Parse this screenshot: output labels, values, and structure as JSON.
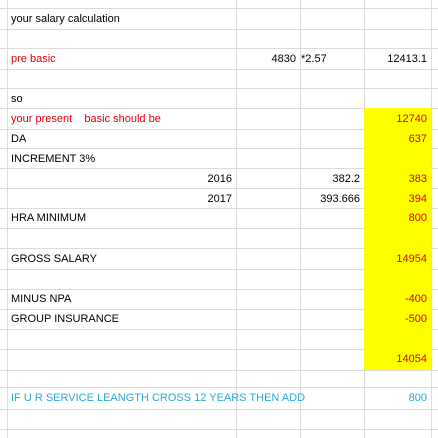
{
  "sheet": {
    "title": "your salary calculation",
    "pre_basic": {
      "label": "pre basic",
      "value": "4830",
      "factor": "*2.57",
      "result": "12413.1"
    },
    "so": "so",
    "present_basic": {
      "label": "your present    basic should be",
      "value": "12740"
    },
    "da": {
      "label": "DA",
      "value": "637"
    },
    "increment": {
      "label": "INCREMENT 3%"
    },
    "inc_2016": {
      "year": "2016",
      "calc": "382.2",
      "value": "383"
    },
    "inc_2017": {
      "year": "2017",
      "calc": "393.666",
      "value": "394"
    },
    "hra": {
      "label": "HRA MINIMUM",
      "value": "800"
    },
    "gross": {
      "label": "GROSS SALARY",
      "value": "14954"
    },
    "npa": {
      "label": "MINUS NPA",
      "value": "-400"
    },
    "insurance": {
      "label": "GROUP INSURANCE",
      "value": "-500"
    },
    "net": {
      "value": "14054"
    },
    "service": {
      "label": "IF U R SERVICE LEANGTH CROSS 12 YEARS THEN ADD",
      "value": "800"
    }
  },
  "colors": {
    "highlight": "#ffff00",
    "red_text": "#e0000e",
    "blue_text": "#2aa8d8",
    "gridline": "#dcdcdc"
  }
}
